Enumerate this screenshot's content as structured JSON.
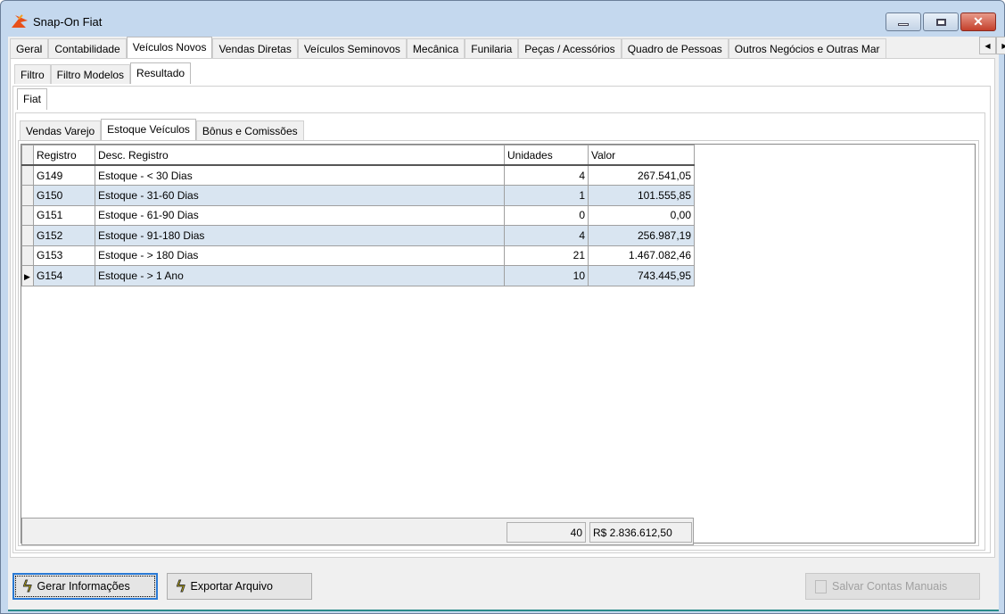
{
  "window": {
    "title": "Snap-On Fiat"
  },
  "main_tabs": [
    {
      "label": "Geral"
    },
    {
      "label": "Contabilidade"
    },
    {
      "label": "Veículos Novos"
    },
    {
      "label": "Vendas Diretas"
    },
    {
      "label": "Veículos Seminovos"
    },
    {
      "label": "Mecânica"
    },
    {
      "label": "Funilaria"
    },
    {
      "label": "Peças / Acessórios"
    },
    {
      "label": "Quadro de Pessoas"
    },
    {
      "label": "Outros Negócios e Outras Mar"
    }
  ],
  "main_active": "Veículos Novos",
  "sub_tabs": [
    {
      "label": "Filtro"
    },
    {
      "label": "Filtro Modelos"
    },
    {
      "label": "Resultado"
    }
  ],
  "brand_tabs": [
    {
      "label": "Fiat"
    }
  ],
  "report_tabs": [
    {
      "label": "Vendas Varejo"
    },
    {
      "label": "Estoque Veículos"
    },
    {
      "label": "Bônus e Comissões"
    }
  ],
  "table": {
    "columns": [
      "Registro",
      "Desc. Registro",
      "Unidades",
      "Valor"
    ],
    "rows": [
      [
        "G149",
        "Estoque - < 30 Dias",
        "4",
        "267.541,05"
      ],
      [
        "G150",
        "Estoque - 31-60 Dias",
        "1",
        "101.555,85"
      ],
      [
        "G151",
        "Estoque - 61-90 Dias",
        "0",
        "0,00"
      ],
      [
        "G152",
        "Estoque - 91-180 Dias",
        "4",
        "256.987,19"
      ],
      [
        "G153",
        "Estoque - > 180 Dias",
        "21",
        "1.467.082,46"
      ],
      [
        "G154",
        "Estoque - > 1 Ano",
        "10",
        "743.445,95"
      ]
    ],
    "current_row": 5,
    "totals": {
      "unidades": "40",
      "valor": "R$ 2.836.612,50"
    }
  },
  "buttons": {
    "gerar": "Gerar Informações",
    "exportar": "Exportar Arquivo",
    "salvar": "Salvar Contas Manuais"
  }
}
